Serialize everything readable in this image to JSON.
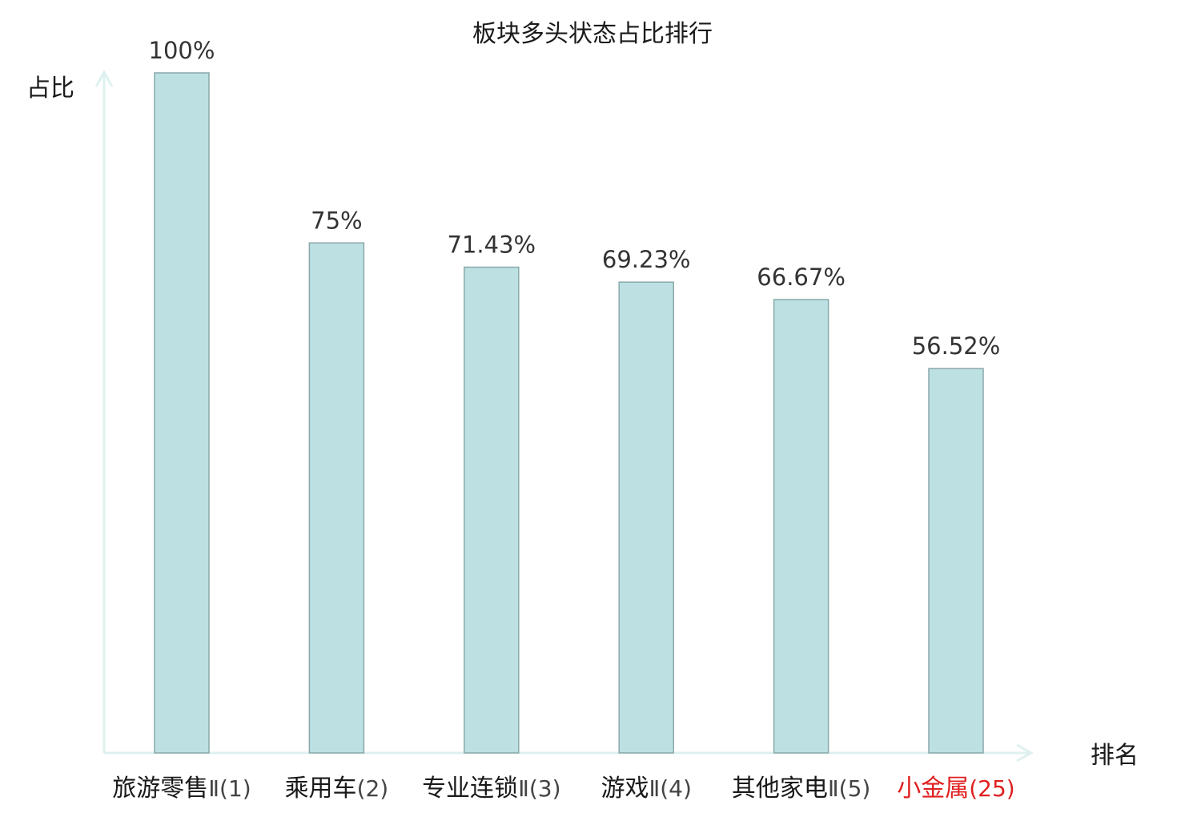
{
  "chart_data": {
    "type": "bar",
    "title": "板块多头状态占比排行",
    "ylabel": "占比",
    "xlabel": "排名",
    "ylim": [
      0,
      100
    ],
    "grid": false,
    "categories": [
      {
        "name": "旅游零售",
        "rank": "Ⅱ(1)",
        "highlight": false
      },
      {
        "name": "乘用车",
        "rank": "(2)",
        "highlight": false
      },
      {
        "name": "专业连锁",
        "rank": "Ⅱ(3)",
        "highlight": false
      },
      {
        "name": "游戏",
        "rank": "Ⅱ(4)",
        "highlight": false
      },
      {
        "name": "其他家电",
        "rank": "Ⅱ(5)",
        "highlight": false
      },
      {
        "name": "小金属",
        "rank": "(25)",
        "highlight": true
      }
    ],
    "values": [
      100,
      75,
      71.43,
      69.23,
      66.67,
      56.52
    ],
    "value_labels": [
      "100%",
      "75%",
      "71.43%",
      "69.23%",
      "66.67%",
      "56.52%"
    ]
  },
  "colors": {
    "bar_fill": "#bde1e3",
    "bar_stroke": "#8aa8a9",
    "axis": "#dff1ef",
    "text": "#1a1a1a",
    "value_text": "#333333",
    "rank_text": "#444444",
    "highlight": "#e02020"
  }
}
